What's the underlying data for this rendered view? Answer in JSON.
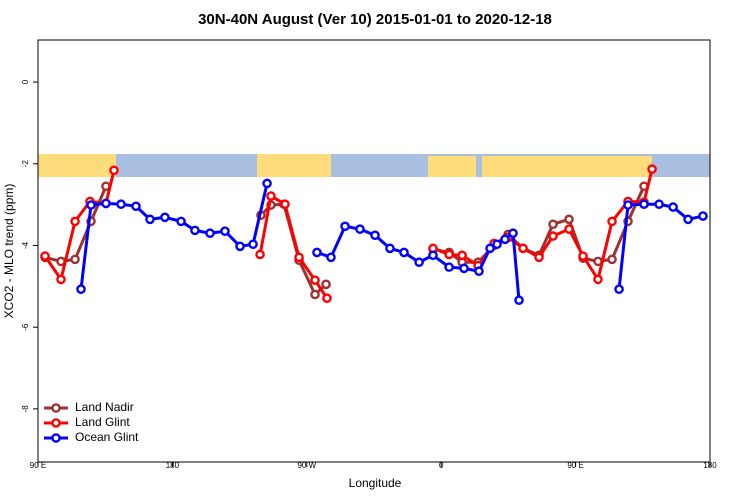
{
  "chart_data": {
    "type": "line",
    "title": "30N-40N August (Ver 10)   2015-01-01 to 2020-12-18",
    "x_label": "Longitude",
    "y_label": "XCO2 - MLO trend (ppm)",
    "xlim": [
      90,
      540
    ],
    "xticks": [
      {
        "value": 90,
        "label": "90 E"
      },
      180,
      {
        "value": 270,
        "label": "90 W"
      },
      {
        "value": 360,
        "label": "0"
      },
      {
        "value": 450,
        "label": "90 E"
      },
      {
        "value": 540,
        "label": "180"
      }
    ],
    "ylim": [
      -9.3,
      1.03
    ],
    "yticks": [
      -8,
      -6,
      -4,
      -2,
      0
    ],
    "legend": "bottom-left",
    "series": [
      {
        "name": "Land Nadir",
        "color": "#a0302f",
        "x": [
          94.7,
          105.4,
          114.8,
          125.5,
          135.5,
          190,
          239.3,
          246,
          254.7,
          264.8,
          275.5,
          282.9,
          320,
          354.5,
          365.3,
          374,
          384.7,
          395.4,
          404.8,
          414.8,
          425.5,
          434.9,
          445.6,
          455,
          465,
          474.4,
          485.1,
          495.8
        ],
        "values": [
          -4.29,
          -4.39,
          -4.34,
          -3.41,
          -2.55,
          null,
          -3.26,
          -3.01,
          -2.99,
          -4.36,
          -5.2,
          -4.95,
          null,
          -4.09,
          -4.17,
          -4.41,
          -4.41,
          -4.0,
          -3.73,
          -4.07,
          -4.24,
          -3.48,
          -3.36,
          -4.31,
          -4.39,
          -4.34,
          -3.41,
          -2.55
        ]
      },
      {
        "name": "Land Glint",
        "color": "#ff0000",
        "x": [
          94.7,
          105.4,
          114.8,
          124.8,
          135.5,
          140.9,
          190,
          238.7,
          246,
          255.4,
          264.8,
          275.5,
          283.5,
          320,
          354.5,
          365.3,
          374,
          384.7,
          395.4,
          404.8,
          414.8,
          425.5,
          434.9,
          445.6,
          455,
          465,
          474.4,
          485.1,
          495.8,
          501.2
        ],
        "values": [
          -4.26,
          -4.83,
          -3.41,
          -2.92,
          -2.97,
          -2.16,
          null,
          -4.22,
          -2.79,
          -2.99,
          -4.29,
          -4.85,
          -5.29,
          null,
          -4.07,
          -4.22,
          -4.24,
          -4.49,
          -3.95,
          -3.8,
          -4.07,
          -4.29,
          -3.77,
          -3.6,
          -4.26,
          -4.83,
          -3.41,
          -2.92,
          -2.94,
          -2.13
        ]
      },
      {
        "name": "Ocean Glint",
        "color": "#0000ff",
        "x": [
          118.8,
          125.5,
          135.5,
          145.6,
          155.6,
          165,
          175,
          185.8,
          195.1,
          205.2,
          215.2,
          225.3,
          234,
          243.4,
          260,
          276.8,
          286.2,
          295.6,
          305.6,
          315.7,
          325.7,
          335.1,
          345.2,
          354.5,
          365.3,
          375.3,
          385.3,
          392.7,
          397.4,
          402.7,
          408.1,
          412.1,
          445,
          479.1,
          485.1,
          495.8,
          505.9,
          515.3,
          525.3,
          535.3
        ],
        "values": [
          -5.07,
          -3.01,
          -2.97,
          -2.99,
          -3.04,
          -3.36,
          -3.31,
          -3.41,
          -3.63,
          -3.7,
          -3.65,
          -4.02,
          -3.97,
          -2.48,
          null,
          -4.17,
          -4.29,
          -3.53,
          -3.6,
          -3.75,
          -4.07,
          -4.17,
          -4.41,
          -4.24,
          -4.53,
          -4.56,
          -4.63,
          -4.07,
          -3.97,
          -3.85,
          -3.7,
          -5.34,
          null,
          -5.07,
          -3.01,
          -2.99,
          -2.99,
          -3.06,
          -3.36,
          -3.28
        ]
      }
    ]
  }
}
